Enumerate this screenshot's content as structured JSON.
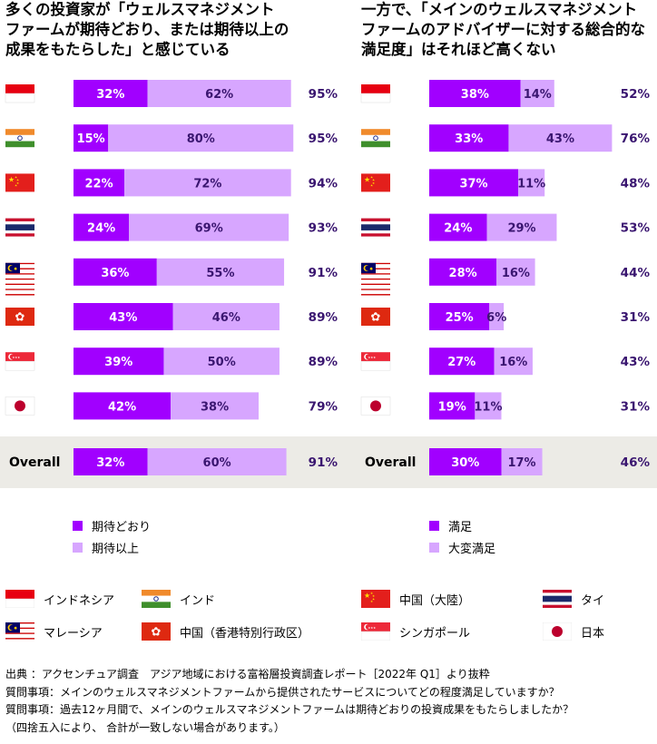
{
  "titles": {
    "left_line1": "多くの投資家が「ウェルスマネジメント",
    "left_line2": "ファームが期待どおり、または期待以上の",
    "left_line3": "成果をもたらした」と感じている",
    "right_line1": "一方で、「メインのウェルスマネジメント",
    "right_line2": "ファームのアドバイザーに対する総合的な",
    "right_line3": "満足度」はそれほど高くない"
  },
  "colors": {
    "dark_purple": "#a100ff",
    "light_purple": "#d7a6ff",
    "total_text": "#3a1670",
    "overall_band": "#ecebe6"
  },
  "chart_data": [
    {
      "type": "bar",
      "orientation": "horizontal",
      "stacked": true,
      "categories": [
        "インドネシア",
        "インド",
        "中国（大陸）",
        "タイ",
        "マレーシア",
        "中国（香港特別行政区）",
        "シンガポール",
        "日本",
        "Overall"
      ],
      "series": [
        {
          "name": "期待どおり",
          "values": [
            32,
            15,
            22,
            24,
            36,
            43,
            39,
            42,
            32
          ]
        },
        {
          "name": "期待以上",
          "values": [
            62,
            80,
            72,
            69,
            55,
            46,
            50,
            38,
            60
          ]
        }
      ],
      "totals": [
        "95%",
        "95%",
        "94%",
        "93%",
        "91%",
        "89%",
        "89%",
        "79%",
        "91%"
      ],
      "xlim": [
        0,
        100
      ],
      "legend": "bottom"
    },
    {
      "type": "bar",
      "orientation": "horizontal",
      "stacked": true,
      "categories": [
        "インドネシア",
        "インド",
        "中国（大陸）",
        "タイ",
        "マレーシア",
        "中国（香港特別行政区）",
        "シンガポール",
        "日本",
        "Overall"
      ],
      "series": [
        {
          "name": "満足",
          "values": [
            38,
            33,
            37,
            24,
            28,
            25,
            27,
            19,
            30
          ]
        },
        {
          "name": "大変満足",
          "values": [
            14,
            43,
            11,
            29,
            16,
            6,
            16,
            11,
            17
          ]
        }
      ],
      "totals": [
        "52%",
        "76%",
        "48%",
        "53%",
        "44%",
        "31%",
        "43%",
        "31%",
        "46%"
      ],
      "xlim": [
        0,
        100
      ],
      "legend": "bottom"
    }
  ],
  "overall_label": "Overall",
  "flags": [
    "indonesia-flag",
    "india-flag",
    "china-flag",
    "thailand-flag",
    "malaysia-flag",
    "hongkong-flag",
    "singapore-flag",
    "japan-flag"
  ],
  "country_legend": [
    {
      "flag": "indonesia-flag",
      "label": "インドネシア"
    },
    {
      "flag": "india-flag",
      "label": "インド"
    },
    {
      "flag": "china-flag",
      "label": "中国（大陸）"
    },
    {
      "flag": "thailand-flag",
      "label": "タイ"
    },
    {
      "flag": "malaysia-flag",
      "label": "マレーシア"
    },
    {
      "flag": "hongkong-flag",
      "label": "中国（香港特別行政区）"
    },
    {
      "flag": "singapore-flag",
      "label": "シンガポール"
    },
    {
      "flag": "japan-flag",
      "label": "日本"
    }
  ],
  "notes": {
    "line1": "出典 ：アクセンチュア調査　アジア地域における富裕層投資調査レポート［2022年 Q1］より抜粋",
    "line2": "質問事項：メインのウェルスマネジメントファームから提供されたサービスについてどの程度満足していますか？",
    "line3": "質問事項：過去12ヶ月間で、メインのウェルスマネジメントファームは期待どおりの投資成果をもたらしましたか？",
    "line4": "（四捨五入により、 合計が一致しない場合があります。）"
  }
}
